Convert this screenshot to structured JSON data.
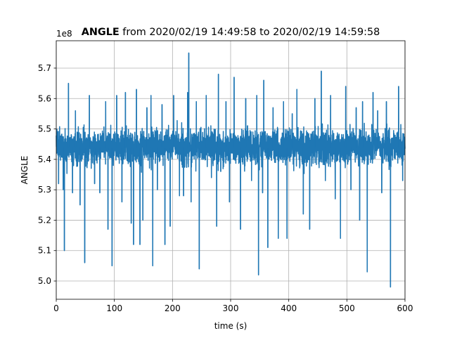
{
  "chart_data": {
    "type": "line",
    "title": {
      "bold_part": "ANGLE",
      "rest": " from 2020/02/19 14:49:58 to 2020/02/19 14:59:58"
    },
    "offset_label": "1e8",
    "xlabel": "time (s)",
    "ylabel": "ANGLE",
    "xlim": [
      0,
      600
    ],
    "ylim": [
      4.94,
      5.79
    ],
    "y_scale_multiplier": 100000000,
    "x_ticks": [
      0,
      100,
      200,
      300,
      400,
      500,
      600
    ],
    "x_tick_labels": [
      "0",
      "100",
      "200",
      "300",
      "400",
      "500",
      "600"
    ],
    "y_ticks": [
      5.0,
      5.1,
      5.2,
      5.3,
      5.4,
      5.5,
      5.6,
      5.7
    ],
    "y_tick_labels": [
      "5.0",
      "5.1",
      "5.2",
      "5.3",
      "5.4",
      "5.5",
      "5.6",
      "5.7"
    ],
    "grid": true,
    "colors": {
      "series": "#1f77b4",
      "grid": "#b0b0b0",
      "axis": "#000000"
    },
    "series": [
      {
        "name": "",
        "band": {
          "center": 5.44,
          "typical_low": 5.33,
          "typical_high": 5.56
        },
        "spikes": [
          {
            "x": 4,
            "y": 5.32
          },
          {
            "x": 12,
            "y": 5.3
          },
          {
            "x": 14,
            "y": 5.1
          },
          {
            "x": 21,
            "y": 5.65
          },
          {
            "x": 28,
            "y": 5.29
          },
          {
            "x": 33,
            "y": 5.56
          },
          {
            "x": 41,
            "y": 5.25
          },
          {
            "x": 49,
            "y": 5.06
          },
          {
            "x": 57,
            "y": 5.61
          },
          {
            "x": 66,
            "y": 5.32
          },
          {
            "x": 75,
            "y": 5.29
          },
          {
            "x": 85,
            "y": 5.59
          },
          {
            "x": 89,
            "y": 5.17
          },
          {
            "x": 96,
            "y": 5.05
          },
          {
            "x": 104,
            "y": 5.61
          },
          {
            "x": 113,
            "y": 5.26
          },
          {
            "x": 119,
            "y": 5.62
          },
          {
            "x": 129,
            "y": 5.19
          },
          {
            "x": 133,
            "y": 5.12
          },
          {
            "x": 138,
            "y": 5.63
          },
          {
            "x": 144,
            "y": 5.12
          },
          {
            "x": 149,
            "y": 5.2
          },
          {
            "x": 156,
            "y": 5.57
          },
          {
            "x": 163,
            "y": 5.61
          },
          {
            "x": 166,
            "y": 5.05
          },
          {
            "x": 174,
            "y": 5.3
          },
          {
            "x": 182,
            "y": 5.58
          },
          {
            "x": 187,
            "y": 5.12
          },
          {
            "x": 196,
            "y": 5.18
          },
          {
            "x": 202,
            "y": 5.61
          },
          {
            "x": 212,
            "y": 5.28
          },
          {
            "x": 219,
            "y": 5.28
          },
          {
            "x": 226,
            "y": 5.62
          },
          {
            "x": 228,
            "y": 5.75
          },
          {
            "x": 232,
            "y": 5.26
          },
          {
            "x": 241,
            "y": 5.59
          },
          {
            "x": 246,
            "y": 5.04
          },
          {
            "x": 258,
            "y": 5.61
          },
          {
            "x": 267,
            "y": 5.34
          },
          {
            "x": 276,
            "y": 5.18
          },
          {
            "x": 279,
            "y": 5.68
          },
          {
            "x": 283,
            "y": 5.36
          },
          {
            "x": 292,
            "y": 5.59
          },
          {
            "x": 298,
            "y": 5.26
          },
          {
            "x": 306,
            "y": 5.67
          },
          {
            "x": 317,
            "y": 5.17
          },
          {
            "x": 326,
            "y": 5.6
          },
          {
            "x": 336,
            "y": 5.33
          },
          {
            "x": 345,
            "y": 5.61
          },
          {
            "x": 348,
            "y": 5.02
          },
          {
            "x": 355,
            "y": 5.29
          },
          {
            "x": 357,
            "y": 5.66
          },
          {
            "x": 364,
            "y": 5.11
          },
          {
            "x": 373,
            "y": 5.57
          },
          {
            "x": 382,
            "y": 5.14
          },
          {
            "x": 391,
            "y": 5.59
          },
          {
            "x": 397,
            "y": 5.14
          },
          {
            "x": 406,
            "y": 5.55
          },
          {
            "x": 414,
            "y": 5.63
          },
          {
            "x": 425,
            "y": 5.22
          },
          {
            "x": 436,
            "y": 5.17
          },
          {
            "x": 445,
            "y": 5.6
          },
          {
            "x": 456,
            "y": 5.69
          },
          {
            "x": 463,
            "y": 5.33
          },
          {
            "x": 472,
            "y": 5.61
          },
          {
            "x": 480,
            "y": 5.27
          },
          {
            "x": 489,
            "y": 5.14
          },
          {
            "x": 498,
            "y": 5.64
          },
          {
            "x": 507,
            "y": 5.3
          },
          {
            "x": 516,
            "y": 5.57
          },
          {
            "x": 522,
            "y": 5.2
          },
          {
            "x": 527,
            "y": 5.59
          },
          {
            "x": 535,
            "y": 5.03
          },
          {
            "x": 545,
            "y": 5.62
          },
          {
            "x": 553,
            "y": 5.56
          },
          {
            "x": 560,
            "y": 5.29
          },
          {
            "x": 568,
            "y": 5.59
          },
          {
            "x": 575,
            "y": 4.98
          },
          {
            "x": 589,
            "y": 5.64
          },
          {
            "x": 596,
            "y": 5.33
          }
        ]
      }
    ]
  }
}
